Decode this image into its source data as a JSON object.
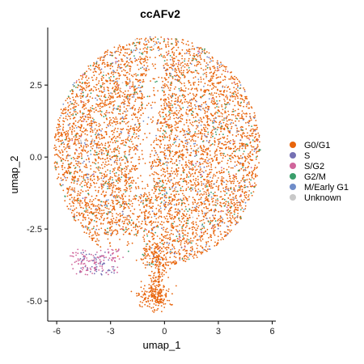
{
  "chart_data": {
    "type": "scatter",
    "title": "ccAFv2",
    "xlabel": "umap_1",
    "ylabel": "umap_2",
    "xlim": [
      -6.5,
      6.2
    ],
    "ylim": [
      -5.7,
      4.5
    ],
    "x_ticks": [
      -6,
      -3,
      0,
      3,
      6
    ],
    "x_tick_labels": [
      "-6",
      "-3",
      "0",
      "3",
      "6"
    ],
    "y_ticks": [
      -5.0,
      -2.5,
      0.0,
      2.5
    ],
    "y_tick_labels": [
      "-5.0",
      "-2.5",
      "0.0",
      "2.5"
    ],
    "grid": false,
    "legend_position": "right",
    "series": [
      {
        "name": "G0/G1",
        "color": "#E8640B",
        "count": 5200
      },
      {
        "name": "S",
        "color": "#7570B3",
        "count": 170
      },
      {
        "name": "S/G2",
        "color": "#D0659B",
        "count": 170
      },
      {
        "name": "G2/M",
        "color": "#3A9E6B",
        "count": 320
      },
      {
        "name": "M/Early G1",
        "color": "#6F8CC9",
        "count": 220
      },
      {
        "name": "Unknown",
        "color": "#C8C8C8",
        "count": 60
      }
    ]
  }
}
